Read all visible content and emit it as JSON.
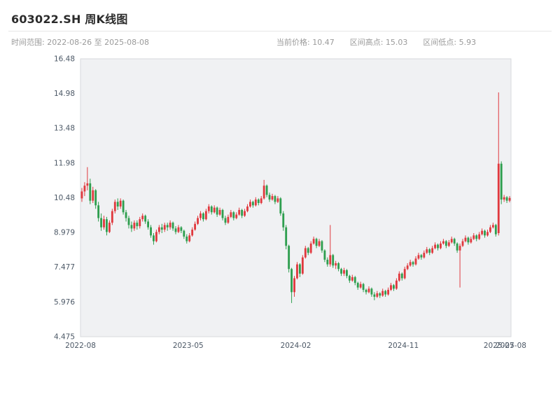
{
  "header": {
    "title": "603022.SH 周K线图",
    "time_range": "时间范围: 2022-08-26 至 2025-08-08",
    "current_price": "当前价格: 10.47",
    "range_high": "区间高点: 15.03",
    "range_low": "区间低点: 5.93"
  },
  "chart_data": {
    "type": "candlestick",
    "title": "603022.SH 周K线图",
    "xlabel": "",
    "ylabel": "",
    "grid": false,
    "legend": false,
    "ylim": [
      4.475,
      16.48
    ],
    "y_ticks": [
      "4.475",
      "5.976",
      "7.477",
      "8.979",
      "10.48",
      "11.98",
      "13.48",
      "14.98",
      "16.48"
    ],
    "x_ticks": [
      {
        "pos": 0.0,
        "label": "2022-08"
      },
      {
        "pos": 0.25,
        "label": "2023-05"
      },
      {
        "pos": 0.5,
        "label": "2024-02"
      },
      {
        "pos": 0.75,
        "label": "2024-11"
      },
      {
        "pos": 0.972,
        "label": "2025-07"
      },
      {
        "pos": 1.0,
        "label": "2025-08"
      }
    ],
    "stats": {
      "current_price": 10.47,
      "range_high": 15.03,
      "range_low": 5.93
    },
    "colors": {
      "up": "#e0393e",
      "down": "#2e9e4e",
      "plot_bg": "#f0f1f3",
      "plot_border": "#d7d9dd",
      "tick_text": "#4c5866"
    },
    "candles_format": [
      "open",
      "high",
      "low",
      "close"
    ],
    "candles": [
      [
        10.45,
        10.9,
        10.3,
        10.75
      ],
      [
        10.75,
        11.15,
        10.55,
        11.0
      ],
      [
        11.0,
        11.8,
        10.8,
        11.1
      ],
      [
        11.1,
        11.3,
        10.2,
        10.35
      ],
      [
        10.35,
        10.95,
        10.25,
        10.8
      ],
      [
        10.8,
        10.85,
        10.0,
        10.15
      ],
      [
        10.15,
        10.3,
        9.45,
        9.6
      ],
      [
        9.6,
        9.8,
        9.05,
        9.2
      ],
      [
        9.2,
        9.7,
        9.1,
        9.55
      ],
      [
        9.55,
        9.65,
        8.85,
        9.0
      ],
      [
        9.0,
        9.5,
        8.95,
        9.4
      ],
      [
        9.4,
        10.0,
        9.3,
        9.9
      ],
      [
        9.9,
        10.4,
        9.8,
        10.3
      ],
      [
        10.3,
        10.45,
        9.95,
        10.1
      ],
      [
        10.1,
        10.45,
        10.0,
        10.35
      ],
      [
        10.35,
        10.4,
        9.75,
        9.85
      ],
      [
        9.85,
        9.95,
        9.45,
        9.6
      ],
      [
        9.6,
        9.7,
        9.15,
        9.3
      ],
      [
        9.3,
        9.45,
        9.0,
        9.15
      ],
      [
        9.15,
        9.5,
        9.05,
        9.4
      ],
      [
        9.4,
        9.5,
        9.1,
        9.25
      ],
      [
        9.25,
        9.65,
        9.15,
        9.55
      ],
      [
        9.55,
        9.8,
        9.45,
        9.7
      ],
      [
        9.7,
        9.75,
        9.35,
        9.45
      ],
      [
        9.45,
        9.55,
        9.1,
        9.2
      ],
      [
        9.2,
        9.3,
        8.75,
        8.85
      ],
      [
        8.85,
        8.95,
        8.45,
        8.6
      ],
      [
        8.6,
        9.1,
        8.55,
        9.0
      ],
      [
        9.0,
        9.3,
        8.9,
        9.2
      ],
      [
        9.2,
        9.35,
        8.95,
        9.1
      ],
      [
        9.1,
        9.4,
        9.0,
        9.3
      ],
      [
        9.3,
        9.4,
        9.05,
        9.2
      ],
      [
        9.2,
        9.5,
        9.1,
        9.4
      ],
      [
        9.4,
        9.45,
        9.05,
        9.15
      ],
      [
        9.15,
        9.25,
        8.9,
        9.0
      ],
      [
        9.0,
        9.3,
        8.95,
        9.2
      ],
      [
        9.2,
        9.25,
        8.95,
        9.05
      ],
      [
        9.05,
        9.1,
        8.7,
        8.8
      ],
      [
        8.8,
        8.9,
        8.5,
        8.6
      ],
      [
        8.6,
        8.95,
        8.55,
        8.85
      ],
      [
        8.85,
        9.2,
        8.8,
        9.1
      ],
      [
        9.1,
        9.45,
        9.05,
        9.35
      ],
      [
        9.35,
        9.7,
        9.3,
        9.6
      ],
      [
        9.6,
        9.9,
        9.5,
        9.8
      ],
      [
        9.8,
        9.85,
        9.45,
        9.55
      ],
      [
        9.55,
        10.0,
        9.5,
        9.9
      ],
      [
        9.9,
        10.2,
        9.8,
        10.1
      ],
      [
        10.1,
        10.15,
        9.75,
        9.85
      ],
      [
        9.85,
        10.15,
        9.8,
        10.05
      ],
      [
        10.05,
        10.1,
        9.65,
        9.75
      ],
      [
        9.75,
        10.05,
        9.7,
        9.95
      ],
      [
        9.95,
        10.0,
        9.5,
        9.6
      ],
      [
        9.6,
        9.7,
        9.3,
        9.4
      ],
      [
        9.4,
        9.75,
        9.35,
        9.65
      ],
      [
        9.65,
        9.95,
        9.6,
        9.85
      ],
      [
        9.85,
        9.9,
        9.5,
        9.6
      ],
      [
        9.6,
        9.85,
        9.55,
        9.75
      ],
      [
        9.75,
        10.05,
        9.7,
        9.95
      ],
      [
        9.95,
        10.0,
        9.6,
        9.7
      ],
      [
        9.7,
        10.0,
        9.65,
        9.9
      ],
      [
        9.9,
        10.2,
        9.85,
        10.1
      ],
      [
        10.1,
        10.4,
        10.05,
        10.3
      ],
      [
        10.3,
        10.35,
        10.05,
        10.15
      ],
      [
        10.15,
        10.5,
        10.1,
        10.4
      ],
      [
        10.4,
        10.45,
        10.15,
        10.25
      ],
      [
        10.25,
        10.55,
        10.2,
        10.45
      ],
      [
        10.45,
        11.25,
        10.4,
        11.0
      ],
      [
        11.0,
        11.05,
        10.5,
        10.6
      ],
      [
        10.6,
        10.7,
        10.3,
        10.4
      ],
      [
        10.4,
        10.65,
        10.35,
        10.55
      ],
      [
        10.55,
        10.6,
        10.2,
        10.3
      ],
      [
        10.3,
        10.55,
        10.25,
        10.45
      ],
      [
        10.45,
        10.5,
        9.7,
        9.8
      ],
      [
        9.8,
        9.9,
        9.05,
        9.2
      ],
      [
        9.2,
        9.3,
        8.25,
        8.4
      ],
      [
        8.4,
        8.45,
        7.25,
        7.4
      ],
      [
        7.4,
        7.45,
        5.93,
        6.4
      ],
      [
        6.4,
        7.1,
        6.2,
        7.0
      ],
      [
        7.0,
        7.7,
        6.95,
        7.6
      ],
      [
        7.6,
        7.65,
        7.05,
        7.2
      ],
      [
        7.2,
        8.0,
        7.15,
        7.9
      ],
      [
        7.9,
        8.4,
        7.85,
        8.3
      ],
      [
        8.3,
        8.35,
        8.0,
        8.1
      ],
      [
        8.1,
        8.6,
        8.05,
        8.5
      ],
      [
        8.5,
        8.8,
        8.45,
        8.7
      ],
      [
        8.7,
        8.75,
        8.3,
        8.4
      ],
      [
        8.4,
        8.7,
        8.35,
        8.6
      ],
      [
        8.6,
        8.65,
        8.1,
        8.2
      ],
      [
        8.2,
        8.25,
        7.7,
        7.8
      ],
      [
        7.8,
        7.9,
        7.5,
        7.6
      ],
      [
        7.6,
        9.3,
        7.5,
        8.0
      ],
      [
        8.0,
        8.05,
        7.45,
        7.55
      ],
      [
        7.55,
        7.75,
        7.4,
        7.65
      ],
      [
        7.65,
        7.7,
        7.3,
        7.4
      ],
      [
        7.4,
        7.45,
        7.1,
        7.2
      ],
      [
        7.2,
        7.45,
        7.1,
        7.35
      ],
      [
        7.35,
        7.4,
        7.0,
        7.1
      ],
      [
        7.1,
        7.15,
        6.8,
        6.9
      ],
      [
        6.9,
        7.15,
        6.85,
        7.05
      ],
      [
        7.05,
        7.1,
        6.7,
        6.8
      ],
      [
        6.8,
        6.85,
        6.5,
        6.6
      ],
      [
        6.6,
        6.85,
        6.55,
        6.75
      ],
      [
        6.75,
        6.8,
        6.4,
        6.5
      ],
      [
        6.5,
        6.55,
        6.3,
        6.4
      ],
      [
        6.4,
        6.65,
        6.35,
        6.55
      ],
      [
        6.55,
        6.6,
        6.2,
        6.3
      ],
      [
        6.3,
        6.4,
        6.05,
        6.2
      ],
      [
        6.2,
        6.45,
        6.15,
        6.35
      ],
      [
        6.35,
        6.4,
        6.15,
        6.25
      ],
      [
        6.25,
        6.55,
        6.2,
        6.45
      ],
      [
        6.45,
        6.5,
        6.2,
        6.3
      ],
      [
        6.3,
        6.6,
        6.25,
        6.5
      ],
      [
        6.5,
        6.8,
        6.45,
        6.7
      ],
      [
        6.7,
        6.75,
        6.45,
        6.55
      ],
      [
        6.55,
        7.0,
        6.5,
        6.9
      ],
      [
        6.9,
        7.3,
        6.85,
        7.2
      ],
      [
        7.2,
        7.25,
        6.9,
        7.0
      ],
      [
        7.0,
        7.5,
        6.95,
        7.4
      ],
      [
        7.4,
        7.65,
        7.35,
        7.55
      ],
      [
        7.55,
        7.8,
        7.5,
        7.7
      ],
      [
        7.7,
        7.75,
        7.5,
        7.6
      ],
      [
        7.6,
        7.95,
        7.55,
        7.85
      ],
      [
        7.85,
        8.1,
        7.8,
        8.0
      ],
      [
        8.0,
        8.05,
        7.8,
        7.9
      ],
      [
        7.9,
        8.2,
        7.85,
        8.1
      ],
      [
        8.1,
        8.35,
        8.05,
        8.25
      ],
      [
        8.25,
        8.3,
        8.0,
        8.1
      ],
      [
        8.1,
        8.4,
        8.05,
        8.3
      ],
      [
        8.3,
        8.55,
        8.25,
        8.45
      ],
      [
        8.45,
        8.5,
        8.2,
        8.3
      ],
      [
        8.3,
        8.6,
        8.25,
        8.5
      ],
      [
        8.5,
        8.7,
        8.45,
        8.6
      ],
      [
        8.6,
        8.65,
        8.3,
        8.4
      ],
      [
        8.4,
        8.65,
        8.35,
        8.55
      ],
      [
        8.55,
        8.8,
        8.5,
        8.7
      ],
      [
        8.7,
        8.75,
        8.4,
        8.5
      ],
      [
        8.5,
        8.55,
        8.1,
        8.2
      ],
      [
        8.2,
        8.5,
        6.6,
        8.4
      ],
      [
        8.4,
        8.7,
        8.35,
        8.6
      ],
      [
        8.6,
        8.85,
        8.55,
        8.75
      ],
      [
        8.75,
        8.8,
        8.45,
        8.55
      ],
      [
        8.55,
        8.8,
        8.5,
        8.7
      ],
      [
        8.7,
        8.95,
        8.65,
        8.85
      ],
      [
        8.85,
        8.9,
        8.6,
        8.7
      ],
      [
        8.7,
        9.0,
        8.65,
        8.9
      ],
      [
        8.9,
        9.15,
        8.85,
        9.05
      ],
      [
        9.05,
        9.1,
        8.75,
        8.85
      ],
      [
        8.85,
        9.1,
        8.8,
        9.0
      ],
      [
        9.0,
        9.3,
        8.95,
        9.2
      ],
      [
        9.2,
        9.4,
        9.15,
        9.3
      ],
      [
        9.3,
        9.35,
        8.8,
        8.9
      ],
      [
        8.95,
        15.03,
        8.85,
        11.95
      ],
      [
        11.95,
        12.05,
        10.2,
        10.4
      ],
      [
        10.4,
        10.6,
        10.3,
        10.5
      ],
      [
        10.5,
        10.55,
        10.25,
        10.35
      ],
      [
        10.35,
        10.55,
        10.28,
        10.47
      ]
    ]
  }
}
